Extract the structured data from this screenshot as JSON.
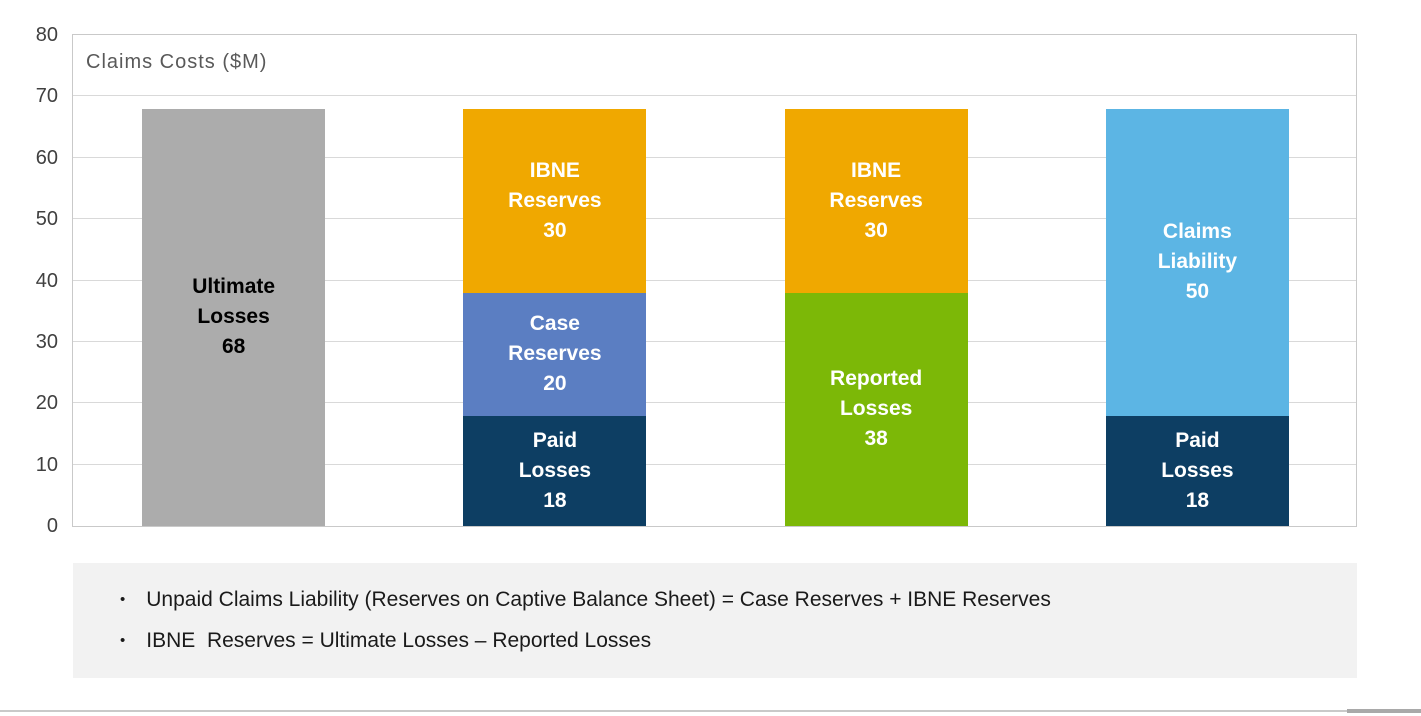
{
  "chart_data": {
    "type": "bar",
    "stacked": true,
    "title": "Claims Costs ($M)",
    "xlabel": "",
    "ylabel": "Claims Costs ($M)",
    "ylim": [
      0,
      80
    ],
    "ytick_step": 10,
    "yticks": [
      "0",
      "10",
      "20",
      "30",
      "40",
      "50",
      "60",
      "70",
      "80"
    ],
    "grid": true,
    "legend": "none (labels inside segments)",
    "bars": [
      {
        "name": "ultimate-losses-bar",
        "segments": [
          {
            "label": "Ultimate Losses",
            "value": 68,
            "color": "#acacac",
            "text_color": "#000000"
          }
        ]
      },
      {
        "name": "reserves-breakdown-bar",
        "segments": [
          {
            "label": "Paid Losses",
            "value": 18,
            "color": "#0d3e63",
            "text_color": "#ffffff"
          },
          {
            "label": "Case Reserves",
            "value": 20,
            "color": "#5b7ec2",
            "text_color": "#ffffff"
          },
          {
            "label": "IBNE Reserves",
            "value": 30,
            "color": "#f0a800",
            "text_color": "#ffffff"
          }
        ]
      },
      {
        "name": "reported-losses-bar",
        "segments": [
          {
            "label": "Reported Losses",
            "value": 38,
            "color": "#7cb807",
            "text_color": "#ffffff"
          },
          {
            "label": "IBNE Reserves",
            "value": 30,
            "color": "#f0a800",
            "text_color": "#ffffff"
          }
        ]
      },
      {
        "name": "claims-liability-bar",
        "segments": [
          {
            "label": "Paid Losses",
            "value": 18,
            "color": "#0d3e63",
            "text_color": "#ffffff"
          },
          {
            "label": "Claims Liability",
            "value": 50,
            "color": "#5cb5e4",
            "text_color": "#ffffff"
          }
        ]
      }
    ]
  },
  "notes": {
    "bullet": "•",
    "items": [
      "Unpaid Claims Liability (Reserves on Captive Balance Sheet) = Case Reserves + IBNE Reserves",
      "IBNE  Reserves = Ultimate Losses – Reported Losses"
    ]
  },
  "colors": {
    "gridline": "#d9d9d9",
    "plot_border": "#c9c9c9",
    "axis_label": "#404040",
    "title": "#595959",
    "notes_background": "#f2f2f2",
    "divider": "#c9c9c9"
  }
}
